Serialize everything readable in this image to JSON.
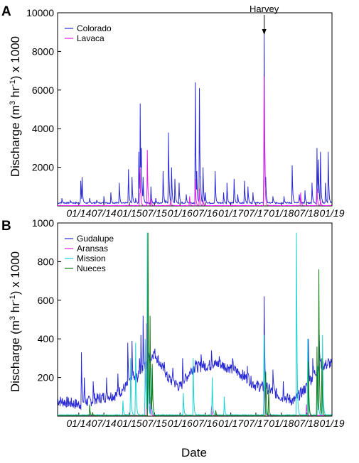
{
  "colors": {
    "Colorado": "#2b2bd6",
    "Lavaca": "#e61ee6",
    "Gudalupe": "#2b2bd6",
    "Aransas": "#e61ee6",
    "Mission": "#19d3d3",
    "Nueces": "#137a13"
  },
  "xlabel": "Date",
  "chart_data": [
    {
      "type": "line",
      "panel": "A",
      "ylabel": "Discharge (m³ hr⁻¹) x 1000",
      "ylabel_parts": {
        "pre": "Discharge (m",
        "sup1": "3",
        "mid": " hr",
        "sup2": "-1",
        "post": ") x 1000"
      },
      "xlim": [
        "2013-08-01",
        "2019-01-01"
      ],
      "ylim": [
        0,
        10000
      ],
      "yticks": [
        2000,
        4000,
        6000,
        8000,
        10000
      ],
      "ytick_labels": [
        "2000",
        "4000",
        "6000",
        "8000",
        "10000"
      ],
      "xtick_dates": [
        "2014-01-01",
        "2014-07-01",
        "2015-01-01",
        "2015-07-01",
        "2016-01-01",
        "2016-07-01",
        "2017-01-01",
        "2017-07-01",
        "2018-01-01",
        "2018-07-01",
        "2019-01-01"
      ],
      "xtick_labels": [
        "01/14",
        "07/14",
        "01/15",
        "07/15",
        "01/16",
        "07/16",
        "01/17",
        "07/17",
        "01/18",
        "07/18",
        "01/19"
      ],
      "legend": "top-left",
      "annotation": {
        "text": "Harvey",
        "x": "2017-08-30"
      },
      "series": [
        {
          "name": "Colorado",
          "baseline": 120,
          "peaks": [
            [
              "2013-09-01",
              400
            ],
            [
              "2013-11-01",
              300
            ],
            [
              "2014-01-15",
              1300
            ],
            [
              "2014-01-25",
              1500
            ],
            [
              "2014-03-20",
              400
            ],
            [
              "2014-05-10",
              300
            ],
            [
              "2014-07-01",
              500
            ],
            [
              "2014-08-20",
              700
            ],
            [
              "2014-10-20",
              1200
            ],
            [
              "2014-12-25",
              1900
            ],
            [
              "2015-01-20",
              1500
            ],
            [
              "2015-02-15",
              400
            ],
            [
              "2015-03-10",
              2800
            ],
            [
              "2015-03-20",
              5300
            ],
            [
              "2015-03-28",
              3000
            ],
            [
              "2015-04-10",
              1500
            ],
            [
              "2015-06-05",
              1000
            ],
            [
              "2015-07-10",
              400
            ],
            [
              "2015-09-01",
              1800
            ],
            [
              "2015-09-20",
              300
            ],
            [
              "2015-10-10",
              3800
            ],
            [
              "2015-11-01",
              2000
            ],
            [
              "2015-11-25",
              1400
            ],
            [
              "2015-12-25",
              1200
            ],
            [
              "2016-02-15",
              600
            ],
            [
              "2016-04-20",
              6400
            ],
            [
              "2016-05-01",
              1800
            ],
            [
              "2016-05-20",
              6100
            ],
            [
              "2016-05-28",
              1500
            ],
            [
              "2016-06-15",
              2000
            ],
            [
              "2016-07-01",
              700
            ],
            [
              "2016-09-10",
              1800
            ],
            [
              "2016-11-10",
              700
            ],
            [
              "2016-12-05",
              1200
            ],
            [
              "2017-01-25",
              1400
            ],
            [
              "2017-02-20",
              600
            ],
            [
              "2017-04-10",
              1300
            ],
            [
              "2017-05-05",
              1000
            ],
            [
              "2017-06-10",
              700
            ],
            [
              "2017-08-30",
              8900
            ],
            [
              "2017-09-10",
              1500
            ],
            [
              "2017-11-01",
              500
            ],
            [
              "2018-01-20",
              500
            ],
            [
              "2018-03-20",
              2100
            ],
            [
              "2018-05-10",
              600
            ],
            [
              "2018-06-20",
              800
            ],
            [
              "2018-08-10",
              1200
            ],
            [
              "2018-09-15",
              3000
            ],
            [
              "2018-09-25",
              2400
            ],
            [
              "2018-10-10",
              2800
            ],
            [
              "2018-11-15",
              1200
            ],
            [
              "2018-12-05",
              2800
            ]
          ]
        },
        {
          "name": "Lavaca",
          "baseline": 15,
          "peaks": [
            [
              "2015-03-15",
              600
            ],
            [
              "2015-03-20",
              2000
            ],
            [
              "2015-05-10",
              2900
            ],
            [
              "2015-06-05",
              400
            ],
            [
              "2015-10-25",
              300
            ],
            [
              "2016-03-10",
              500
            ],
            [
              "2016-04-20",
              1400
            ],
            [
              "2016-05-20",
              900
            ],
            [
              "2016-06-15",
              300
            ],
            [
              "2017-08-30",
              6700
            ],
            [
              "2018-05-20",
              700
            ],
            [
              "2018-09-15",
              900
            ],
            [
              "2018-10-10",
              300
            ]
          ]
        }
      ]
    },
    {
      "type": "line",
      "panel": "B",
      "ylabel": "Discharge (m³ hr⁻¹) x 1000",
      "ylabel_parts": {
        "pre": "Discharge (m",
        "sup1": "3",
        "mid": " hr",
        "sup2": "-1",
        "post": ") x 1000"
      },
      "xlim": [
        "2013-08-01",
        "2019-01-01"
      ],
      "ylim": [
        0,
        1000
      ],
      "yticks": [
        200,
        400,
        600,
        800,
        1000
      ],
      "ytick_labels": [
        "200",
        "400",
        "600",
        "800",
        "1000"
      ],
      "xtick_dates": [
        "2014-01-01",
        "2014-07-01",
        "2015-01-01",
        "2015-07-01",
        "2016-01-01",
        "2016-07-01",
        "2017-01-01",
        "2017-07-01",
        "2018-01-01",
        "2018-07-01",
        "2019-01-01"
      ],
      "xtick_labels": [
        "01/14",
        "07/14",
        "01/15",
        "07/15",
        "01/16",
        "07/16",
        "01/17",
        "07/17",
        "01/18",
        "07/18",
        "01/19"
      ],
      "legend": "top-left",
      "series": [
        {
          "name": "Gudalupe",
          "base_points": [
            [
              "2013-08-01",
              80
            ],
            [
              "2014-01-01",
              60
            ],
            [
              "2014-07-01",
              100
            ],
            [
              "2014-10-01",
              110
            ],
            [
              "2015-01-01",
              170
            ],
            [
              "2015-04-01",
              220
            ],
            [
              "2015-07-01",
              330
            ],
            [
              "2015-10-01",
              200
            ],
            [
              "2016-01-01",
              150
            ],
            [
              "2016-04-01",
              250
            ],
            [
              "2016-07-01",
              260
            ],
            [
              "2016-10-01",
              270
            ],
            [
              "2017-01-01",
              250
            ],
            [
              "2017-04-01",
              210
            ],
            [
              "2017-07-01",
              160
            ],
            [
              "2017-10-01",
              140
            ],
            [
              "2018-01-01",
              100
            ],
            [
              "2018-04-01",
              80
            ],
            [
              "2018-07-01",
              150
            ],
            [
              "2018-10-01",
              260
            ],
            [
              "2019-01-01",
              270
            ]
          ],
          "peaks": [
            [
              "2014-01-20",
              330
            ],
            [
              "2014-02-10",
              200
            ],
            [
              "2014-04-15",
              180
            ],
            [
              "2014-07-20",
              200
            ],
            [
              "2014-10-10",
              220
            ],
            [
              "2014-12-20",
              380
            ],
            [
              "2015-01-20",
              390
            ],
            [
              "2015-03-15",
              300
            ],
            [
              "2015-03-25",
              420
            ],
            [
              "2015-04-10",
              520
            ],
            [
              "2015-05-20",
              330
            ],
            [
              "2015-06-15",
              320
            ],
            [
              "2015-09-10",
              280
            ],
            [
              "2015-11-10",
              250
            ],
            [
              "2016-01-20",
              300
            ],
            [
              "2016-04-20",
              290
            ],
            [
              "2016-06-01",
              320
            ],
            [
              "2016-08-15",
              340
            ],
            [
              "2016-10-10",
              310
            ],
            [
              "2017-01-15",
              300
            ],
            [
              "2017-05-01",
              260
            ],
            [
              "2017-08-30",
              620
            ],
            [
              "2017-11-01",
              240
            ],
            [
              "2018-01-15",
              180
            ],
            [
              "2018-07-15",
              400
            ],
            [
              "2018-08-15",
              300
            ],
            [
              "2018-10-01",
              420
            ],
            [
              "2018-12-05",
              300
            ]
          ]
        },
        {
          "name": "Aransas",
          "baseline": 3,
          "peaks": [
            [
              "2015-05-05",
              480
            ],
            [
              "2015-05-12",
              750
            ],
            [
              "2015-06-01",
              100
            ],
            [
              "2016-08-15",
              50
            ],
            [
              "2017-08-30",
              250
            ],
            [
              "2018-07-01",
              60
            ]
          ]
        },
        {
          "name": "Mission",
          "baseline": 5,
          "peaks": [
            [
              "2014-11-15",
              80
            ],
            [
              "2015-01-10",
              300
            ],
            [
              "2015-02-15",
              380
            ],
            [
              "2015-04-25",
              400
            ],
            [
              "2015-05-10",
              950
            ],
            [
              "2015-06-05",
              250
            ],
            [
              "2016-01-25",
              120
            ],
            [
              "2016-04-05",
              300
            ],
            [
              "2016-08-20",
              200
            ],
            [
              "2016-11-15",
              100
            ],
            [
              "2017-08-30",
              420
            ],
            [
              "2018-04-20",
              950
            ],
            [
              "2018-07-10",
              400
            ],
            [
              "2018-09-20",
              260
            ],
            [
              "2018-10-25",
              420
            ]
          ]
        },
        {
          "name": "Nueces",
          "baseline": 2,
          "peaks": [
            [
              "2014-03-20",
              60
            ],
            [
              "2014-04-10",
              20
            ],
            [
              "2015-05-15",
              950
            ],
            [
              "2015-05-30",
              520
            ],
            [
              "2015-06-15",
              270
            ],
            [
              "2016-09-15",
              30
            ],
            [
              "2017-09-10",
              230
            ],
            [
              "2017-10-01",
              150
            ],
            [
              "2018-07-15",
              280
            ],
            [
              "2018-09-15",
              360
            ],
            [
              "2018-09-28",
              760
            ],
            [
              "2018-10-20",
              300
            ]
          ]
        }
      ]
    }
  ]
}
